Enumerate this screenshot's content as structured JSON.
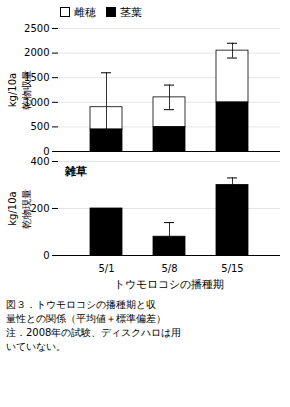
{
  "chart_data": [
    {
      "type": "bar",
      "stacked": true,
      "categories": [
        "5/1",
        "5/8",
        "5/15"
      ],
      "series": [
        {
          "name": "茎葉",
          "color": "#000000",
          "values": [
            450,
            500,
            1000
          ]
        },
        {
          "name": "雌穂",
          "color": "#ffffff",
          "values": [
            450,
            600,
            1050
          ]
        }
      ],
      "total_errors": [
        700,
        250,
        150
      ],
      "ylabel": [
        "乾物収量",
        "kg/10a"
      ],
      "ylim": [
        0,
        2500
      ],
      "yticks": [
        0,
        500,
        1000,
        1500,
        2000,
        2500
      ],
      "grid": true,
      "legend": "upper left",
      "tick_labels": "y"
    },
    {
      "type": "bar",
      "categories": [
        "5/1",
        "5/8",
        "5/15"
      ],
      "values": [
        200,
        80,
        300
      ],
      "errors": [
        0,
        60,
        30
      ],
      "color": "#000000",
      "ylabel": [
        "乾物現量",
        "kg/10a"
      ],
      "xlabel": "トウモロコシの播種期",
      "ylim": [
        0,
        400
      ],
      "yticks": [
        0,
        200,
        400
      ],
      "grid": true,
      "annotations": [
        "雑草"
      ],
      "caption": [
        "図３．トウモロコシの播種期と収",
        "量性との関係（平均値＋標準偏差）",
        "注．2008年の試験、ディスクハロは用",
        "いていない。"
      ]
    }
  ]
}
